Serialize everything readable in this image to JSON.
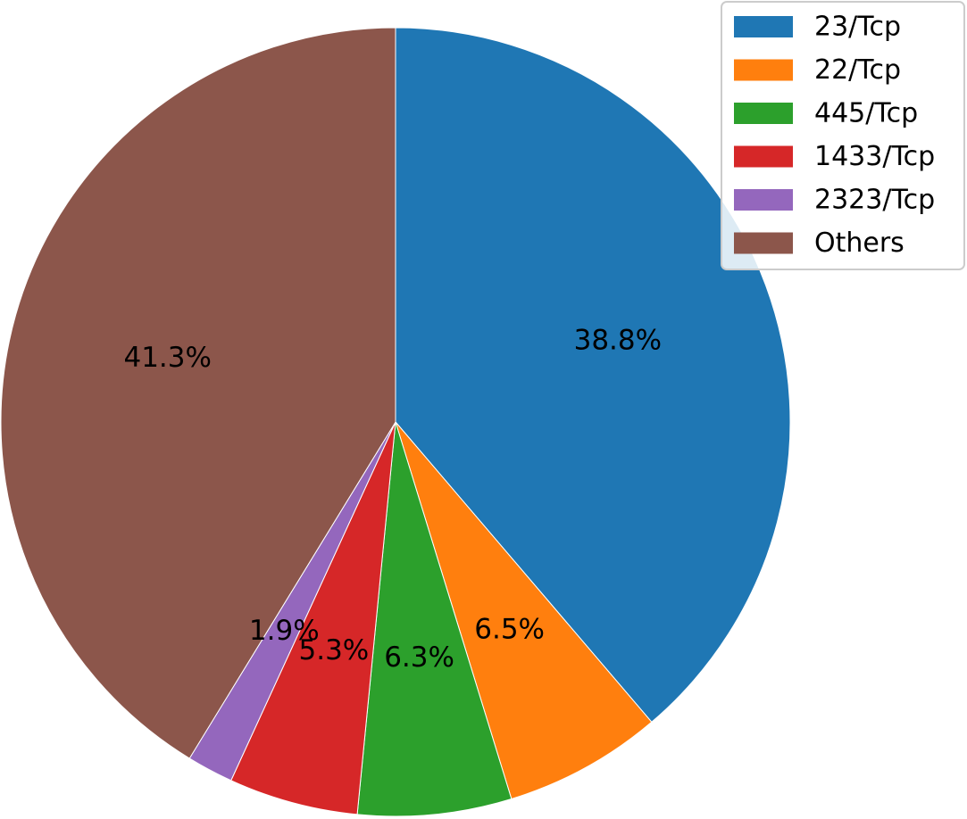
{
  "chart_data": {
    "type": "pie",
    "start_angle_deg": 90,
    "direction": "clockwise",
    "slices": [
      {
        "label": "23/Tcp",
        "value": 38.8,
        "pct_text": "38.8%",
        "color": "#1f77b4"
      },
      {
        "label": "22/Tcp",
        "value": 6.5,
        "pct_text": "6.5%",
        "color": "#ff7f0e"
      },
      {
        "label": "445/Tcp",
        "value": 6.3,
        "pct_text": "6.3%",
        "color": "#2ca02c"
      },
      {
        "label": "1433/Tcp",
        "value": 5.3,
        "pct_text": "5.3%",
        "color": "#d62728"
      },
      {
        "label": "2323/Tcp",
        "value": 1.9,
        "pct_text": "1.9%",
        "color": "#9467bd"
      },
      {
        "label": "Others",
        "value": 41.3,
        "pct_text": "41.3%",
        "color": "#8c564b"
      }
    ],
    "legend": {
      "placement": "top-right",
      "entries": [
        "23/Tcp",
        "22/Tcp",
        "445/Tcp",
        "1433/Tcp",
        "2323/Tcp",
        "Others"
      ]
    }
  }
}
